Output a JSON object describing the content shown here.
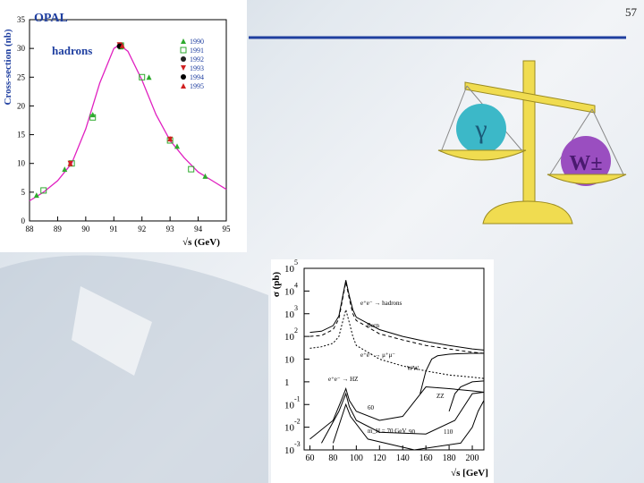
{
  "page_number": "57",
  "illustration": {
    "left_label": "γ",
    "right_label": "W±"
  },
  "chart_data": [
    {
      "type": "scatter",
      "title": "OPAL",
      "annotation": "hadrons",
      "x_label": "√s (GeV)",
      "y_label": "Cross-section (nb)",
      "xlim": [
        88,
        95
      ],
      "ylim": [
        0,
        35
      ],
      "xticks": [
        88,
        89,
        90,
        91,
        92,
        93,
        94,
        95
      ],
      "yticks": [
        0,
        5,
        10,
        15,
        20,
        25,
        30,
        35
      ],
      "curve": {
        "color": "#e020c0",
        "x": [
          88,
          88.5,
          89,
          89.5,
          90,
          90.5,
          91,
          91.2,
          91.5,
          92,
          92.5,
          93,
          93.5,
          94,
          94.5,
          95
        ],
        "values": [
          3.5,
          5,
          7,
          10,
          16,
          24,
          30,
          30.6,
          29.5,
          24.5,
          18.5,
          14,
          11,
          8.5,
          7,
          5.5
        ]
      },
      "series": [
        {
          "name": "1990",
          "color": "#2eaa2e",
          "marker": "triangle",
          "x": [
            88.25,
            89.25,
            90.25,
            91.25,
            92.25,
            93.25,
            94.25
          ],
          "values": [
            4.5,
            9,
            18.5,
            30.3,
            25,
            13,
            7.8
          ]
        },
        {
          "name": "1991",
          "color": "#2eaa2e",
          "marker": "square",
          "x": [
            88.5,
            89.5,
            90.25,
            91.25,
            92,
            93,
            93.75
          ],
          "values": [
            5.3,
            10,
            18,
            30.5,
            25,
            14,
            9
          ]
        },
        {
          "name": "1992",
          "color": "#222222",
          "marker": "circle",
          "x": [
            91.25
          ],
          "values": [
            30.5
          ]
        },
        {
          "name": "1993",
          "color": "#d02020",
          "marker": "triangle-down",
          "x": [
            89.45,
            91.2,
            93
          ],
          "values": [
            10,
            30.6,
            14.2
          ]
        },
        {
          "name": "1994",
          "color": "#000000",
          "marker": "circle",
          "x": [
            91.2
          ],
          "values": [
            30.4
          ]
        },
        {
          "name": "1995",
          "color": "#d02020",
          "marker": "triangle",
          "x": [
            89.45,
            91.3,
            93
          ],
          "values": [
            10,
            30.5,
            14.3
          ]
        }
      ]
    },
    {
      "type": "line",
      "y_label": "σ (pb)",
      "x_label": "√s [GeV]",
      "log_y": true,
      "xlim": [
        55,
        210
      ],
      "ylim": [
        0.001,
        100000
      ],
      "xticks": [
        60,
        80,
        100,
        120,
        140,
        160,
        180,
        200
      ],
      "yticks": [
        {
          "value": 100000,
          "label": "10",
          "sup": "5"
        },
        {
          "value": 10000,
          "label": "10",
          "sup": "4"
        },
        {
          "value": 1000,
          "label": "10",
          "sup": "3"
        },
        {
          "value": 100,
          "label": "10",
          "sup": "2"
        },
        10,
        1,
        {
          "value": 0.1,
          "label": "10",
          "sup": "-1"
        },
        {
          "value": 0.01,
          "label": "10",
          "sup": "-2"
        },
        {
          "value": 0.001,
          "label": "10",
          "sup": "-3"
        }
      ],
      "annotations": [
        "e⁺e⁻ → hadrons",
        "Born",
        "e⁺e⁻ → μ⁺μ⁻",
        "WW",
        "e⁺e⁻ → HZ",
        "ZZ",
        "60",
        "m_H = 70 GeV",
        "90",
        "110"
      ],
      "series": [
        {
          "color": "#000000",
          "dash": "none",
          "x": [
            60,
            70,
            80,
            85,
            88,
            91,
            94,
            97,
            100,
            120,
            140,
            160,
            180,
            200,
            210
          ],
          "values": [
            150,
            170,
            300,
            800,
            5000,
            30000,
            6000,
            1500,
            700,
            200,
            100,
            60,
            40,
            28,
            25
          ]
        },
        {
          "color": "#000000",
          "dash": "4 3",
          "x": [
            60,
            70,
            80,
            85,
            88,
            91,
            94,
            97,
            100,
            120,
            140,
            160,
            180,
            200,
            210
          ],
          "values": [
            100,
            110,
            200,
            600,
            4000,
            25000,
            4500,
            1000,
            500,
            130,
            70,
            40,
            28,
            20,
            18
          ]
        },
        {
          "color": "#000000",
          "dash": "2 2",
          "x": [
            60,
            70,
            80,
            85,
            88,
            91,
            94,
            97,
            100,
            120,
            140,
            160,
            180,
            200,
            210
          ],
          "values": [
            30,
            35,
            50,
            100,
            400,
            1500,
            400,
            100,
            40,
            10,
            5,
            3,
            2,
            1.6,
            1.4
          ]
        },
        {
          "color": "#000000",
          "dash": "none",
          "x": [
            155,
            160,
            165,
            170,
            180,
            190,
            200,
            210
          ],
          "values": [
            0.3,
            3,
            10,
            14,
            16.5,
            17.5,
            18,
            18
          ]
        },
        {
          "color": "#000000",
          "dash": "none",
          "x": [
            180,
            185,
            190,
            200,
            210
          ],
          "values": [
            0.05,
            0.3,
            0.6,
            1,
            1.1
          ]
        },
        {
          "color": "#000000",
          "dash": "none",
          "x": [
            60,
            80,
            88,
            91,
            94,
            100,
            120,
            140,
            160,
            180,
            200,
            210
          ],
          "values": [
            0.003,
            0.02,
            0.2,
            0.5,
            0.15,
            0.05,
            0.02,
            0.03,
            0.6,
            0.5,
            0.4,
            0.35
          ]
        },
        {
          "color": "#000000",
          "dash": "none",
          "x": [
            70,
            85,
            91,
            94,
            100,
            120,
            160,
            185,
            200,
            210
          ],
          "values": [
            0.002,
            0.05,
            0.3,
            0.08,
            0.02,
            0.006,
            0.005,
            0.02,
            0.3,
            0.35
          ]
        },
        {
          "color": "#000000",
          "dash": "none",
          "x": [
            80,
            91,
            95,
            110,
            150,
            190,
            200,
            205,
            210
          ],
          "values": [
            0.002,
            0.1,
            0.03,
            0.003,
            0.001,
            0.002,
            0.01,
            0.05,
            0.15
          ]
        }
      ]
    }
  ]
}
